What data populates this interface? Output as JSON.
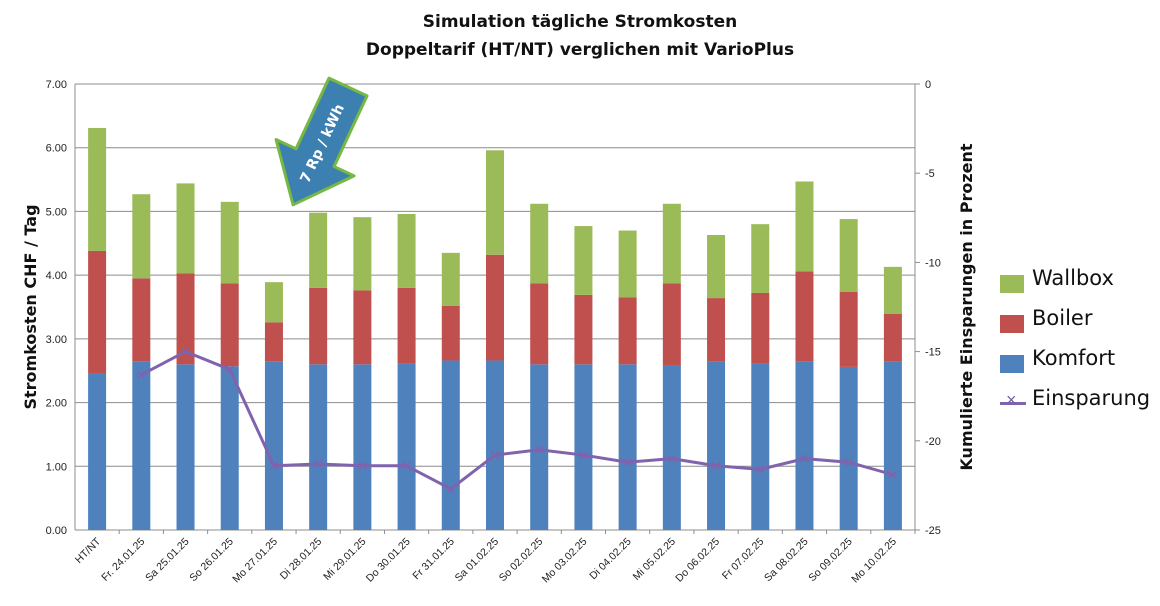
{
  "chart_data": {
    "type": "bar",
    "stacked": true,
    "title": "Simulation tägliche Stromkosten",
    "subtitle": "Doppeltarif (HT/NT) verglichen mit VarioPlus",
    "ylabel": "Stromkosten CHF / Tag",
    "y2label": "Kumulierte Einsparungen in Prozent",
    "ylim": [
      0,
      7
    ],
    "y2lim": [
      -25,
      0
    ],
    "yticks": [
      "0.00",
      "1.00",
      "2.00",
      "3.00",
      "4.00",
      "5.00",
      "6.00",
      "7.00"
    ],
    "y2ticks": [
      "0",
      "-5",
      "-10",
      "-15",
      "-20",
      "-25"
    ],
    "categories": [
      "HT/NT",
      "Fr. 24.01.25",
      "Sa 25.01.25",
      "So 26.01.25",
      "Mo 27.01.25",
      "Di 28.01.25",
      "Mi 29.01.25",
      "Do 30.01.25",
      "Fr 31.01.25",
      "Sa 01.02.25",
      "So 02.02.25",
      "Mo 03.02.25",
      "Di 04.02.25",
      "Mi 05.02.25",
      "Do 06.02.25",
      "Fr 07.02.25",
      "Sa 08.02.25",
      "So 09.02.25",
      "Mo 10.02.25"
    ],
    "series": [
      {
        "name": "Komfort",
        "color": "#4f81bd",
        "values": [
          2.45,
          2.65,
          2.6,
          2.57,
          2.65,
          2.6,
          2.6,
          2.62,
          2.66,
          2.66,
          2.6,
          2.6,
          2.6,
          2.59,
          2.64,
          2.62,
          2.64,
          2.56,
          2.64
        ]
      },
      {
        "name": "Boiler",
        "color": "#c0504d",
        "values": [
          1.93,
          1.3,
          1.43,
          1.3,
          0.61,
          1.2,
          1.16,
          1.18,
          0.86,
          1.66,
          1.27,
          1.09,
          1.05,
          1.28,
          1.0,
          1.1,
          1.42,
          1.18,
          0.75
        ]
      },
      {
        "name": "Wallbox",
        "color": "#9bbb59",
        "values": [
          1.93,
          1.32,
          1.41,
          1.28,
          0.63,
          1.18,
          1.15,
          1.16,
          0.83,
          1.64,
          1.25,
          1.08,
          1.05,
          1.25,
          0.99,
          1.08,
          1.41,
          1.14,
          0.74
        ]
      },
      {
        "name": "Einsparung",
        "color": "#7f63ad",
        "axis": "right",
        "type": "line",
        "values": [
          null,
          -16.3,
          -15.0,
          -16.0,
          -21.4,
          -21.3,
          -21.4,
          -21.4,
          -22.7,
          -20.8,
          -20.5,
          -20.8,
          -21.2,
          -21.0,
          -21.4,
          -21.6,
          -21.0,
          -21.2,
          -21.9
        ]
      }
    ],
    "annotation": {
      "text": "7 Rp / kWh",
      "shape": "arrow",
      "color": "#3c7fb1",
      "border": "#77b843"
    },
    "legend_position": "right"
  }
}
